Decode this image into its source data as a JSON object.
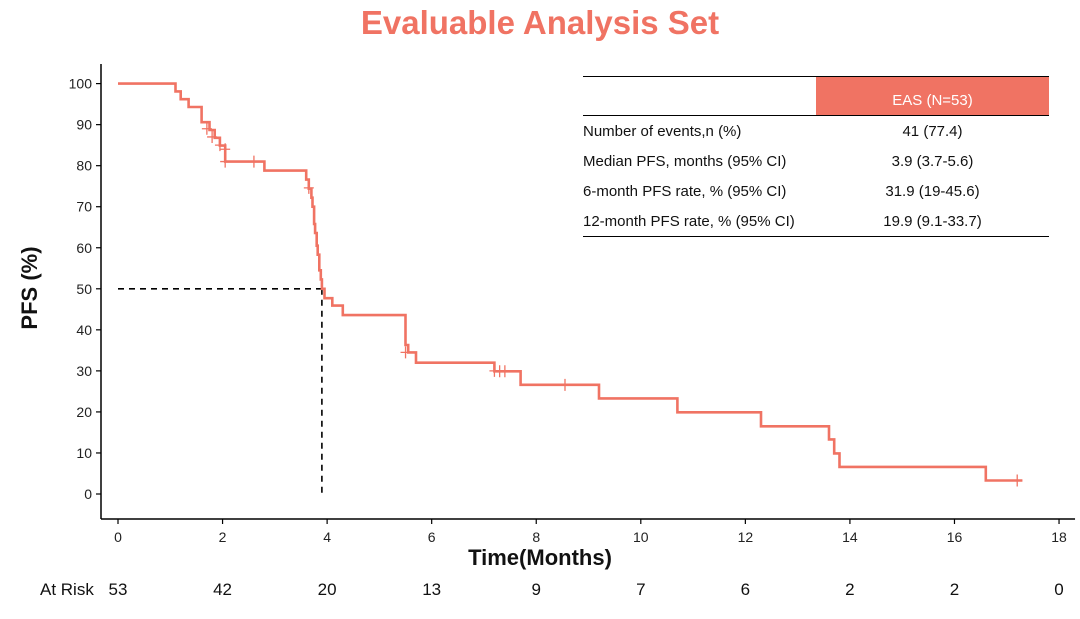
{
  "chart_data": {
    "type": "line",
    "title": "Evaluable Analysis Set",
    "xlabel": "Time(Months)",
    "ylabel": "PFS (%)",
    "xlim": [
      0,
      18
    ],
    "ylim": [
      0,
      100
    ],
    "x_ticks": [
      0,
      2,
      4,
      6,
      8,
      10,
      12,
      14,
      16,
      18
    ],
    "y_ticks": [
      0,
      10,
      20,
      30,
      40,
      50,
      60,
      70,
      80,
      90,
      100
    ],
    "grid": false,
    "color": "#F07363",
    "series": [
      {
        "name": "EAS (N=53)",
        "steps": [
          [
            0,
            100
          ],
          [
            1.1,
            98.1
          ],
          [
            1.2,
            96.2
          ],
          [
            1.35,
            94.3
          ],
          [
            1.6,
            90.6
          ],
          [
            1.75,
            88.7
          ],
          [
            1.85,
            86.8
          ],
          [
            1.95,
            84.9
          ],
          [
            2.05,
            81.0
          ],
          [
            2.8,
            78.8
          ],
          [
            3.6,
            76.6
          ],
          [
            3.65,
            74.4
          ],
          [
            3.7,
            72.2
          ],
          [
            3.72,
            70.0
          ],
          [
            3.75,
            65.8
          ],
          [
            3.77,
            63.6
          ],
          [
            3.8,
            60.5
          ],
          [
            3.82,
            58.3
          ],
          [
            3.85,
            54.5
          ],
          [
            3.88,
            52.3
          ],
          [
            3.9,
            50.0
          ],
          [
            3.95,
            47.7
          ],
          [
            4.1,
            45.9
          ],
          [
            4.3,
            43.6
          ],
          [
            5.5,
            36.3
          ],
          [
            5.55,
            34.5
          ],
          [
            5.7,
            32.0
          ],
          [
            7.2,
            29.9
          ],
          [
            7.7,
            26.6
          ],
          [
            9.2,
            23.3
          ],
          [
            10.7,
            19.9
          ],
          [
            12.3,
            16.5
          ],
          [
            13.6,
            13.3
          ],
          [
            13.7,
            9.9
          ],
          [
            13.8,
            6.6
          ],
          [
            16.6,
            3.3
          ],
          [
            17.3,
            3.3
          ]
        ],
        "censored": [
          [
            1.7,
            89.0
          ],
          [
            1.8,
            87.0
          ],
          [
            1.95,
            85.0
          ],
          [
            2.05,
            84.0
          ],
          [
            2.05,
            81.0
          ],
          [
            2.6,
            81.0
          ],
          [
            3.65,
            74.6
          ],
          [
            5.5,
            34.5
          ],
          [
            7.2,
            30.0
          ],
          [
            7.3,
            29.9
          ],
          [
            7.4,
            29.9
          ],
          [
            8.55,
            26.6
          ],
          [
            17.2,
            3.3
          ]
        ]
      }
    ],
    "median_pfs": 3.9,
    "median_level": 50
  },
  "table": {
    "header": "EAS (N=53)",
    "rows": [
      {
        "label": "Number of events,n (%)",
        "value": "41 (77.4)"
      },
      {
        "label": "Median PFS, months (95% CI)",
        "value": "3.9 (3.7-5.6)"
      },
      {
        "label": "6-month PFS rate, % (95% CI)",
        "value": "31.9 (19-45.6)"
      },
      {
        "label": "12-month PFS rate, % (95% CI)",
        "value": "19.9 (9.1-33.7)"
      }
    ]
  },
  "at_risk": {
    "label": "At Risk",
    "times": [
      0,
      2,
      4,
      6,
      8,
      10,
      12,
      14,
      16,
      18
    ],
    "counts": [
      "53",
      "42",
      "20",
      "13",
      "9",
      "7",
      "6",
      "2",
      "2",
      "0"
    ]
  }
}
